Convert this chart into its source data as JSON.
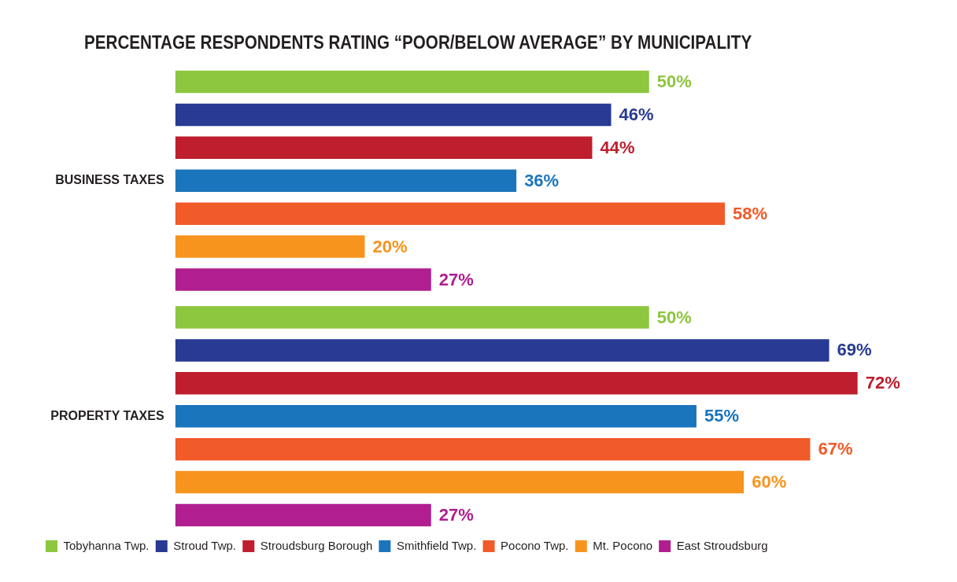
{
  "chart_data": {
    "type": "bar",
    "orientation": "horizontal",
    "title": "PERCENTAGE RESPONDENTS RATING “POOR/BELOW AVERAGE” BY MUNICIPALITY",
    "categories": [
      "BUSINESS TAXES",
      "PROPERTY TAXES"
    ],
    "series": [
      {
        "name": "Tobyhanna Twp.",
        "color": "#8dc63f",
        "values": [
          50,
          50
        ],
        "value_labels": [
          "50%",
          "50%"
        ]
      },
      {
        "name": "Stroud Twp.",
        "color": "#283a93",
        "values": [
          46,
          69
        ],
        "value_labels": [
          "46%",
          "69%"
        ]
      },
      {
        "name": "Stroudsburg Borough",
        "color": "#be1e2d",
        "values": [
          44,
          72
        ],
        "value_labels": [
          "44%",
          "72%"
        ]
      },
      {
        "name": "Smithfield Twp.",
        "color": "#1b75bc",
        "values": [
          36,
          55
        ],
        "value_labels": [
          "36%",
          "55%"
        ]
      },
      {
        "name": "Pocono Twp.",
        "color": "#f15a29",
        "values": [
          58,
          67
        ],
        "value_labels": [
          "58%",
          "67%"
        ]
      },
      {
        "name": "Mt. Pocono",
        "color": "#f7941d",
        "values": [
          20,
          60
        ],
        "value_labels": [
          "20%",
          "60%"
        ]
      },
      {
        "name": "East Stroudsburg",
        "color": "#b01e8f",
        "values": [
          27,
          27
        ],
        "value_labels": [
          "27%",
          "27%"
        ]
      }
    ],
    "tick_labels": "y",
    "grid": false,
    "legend": "bottom"
  }
}
